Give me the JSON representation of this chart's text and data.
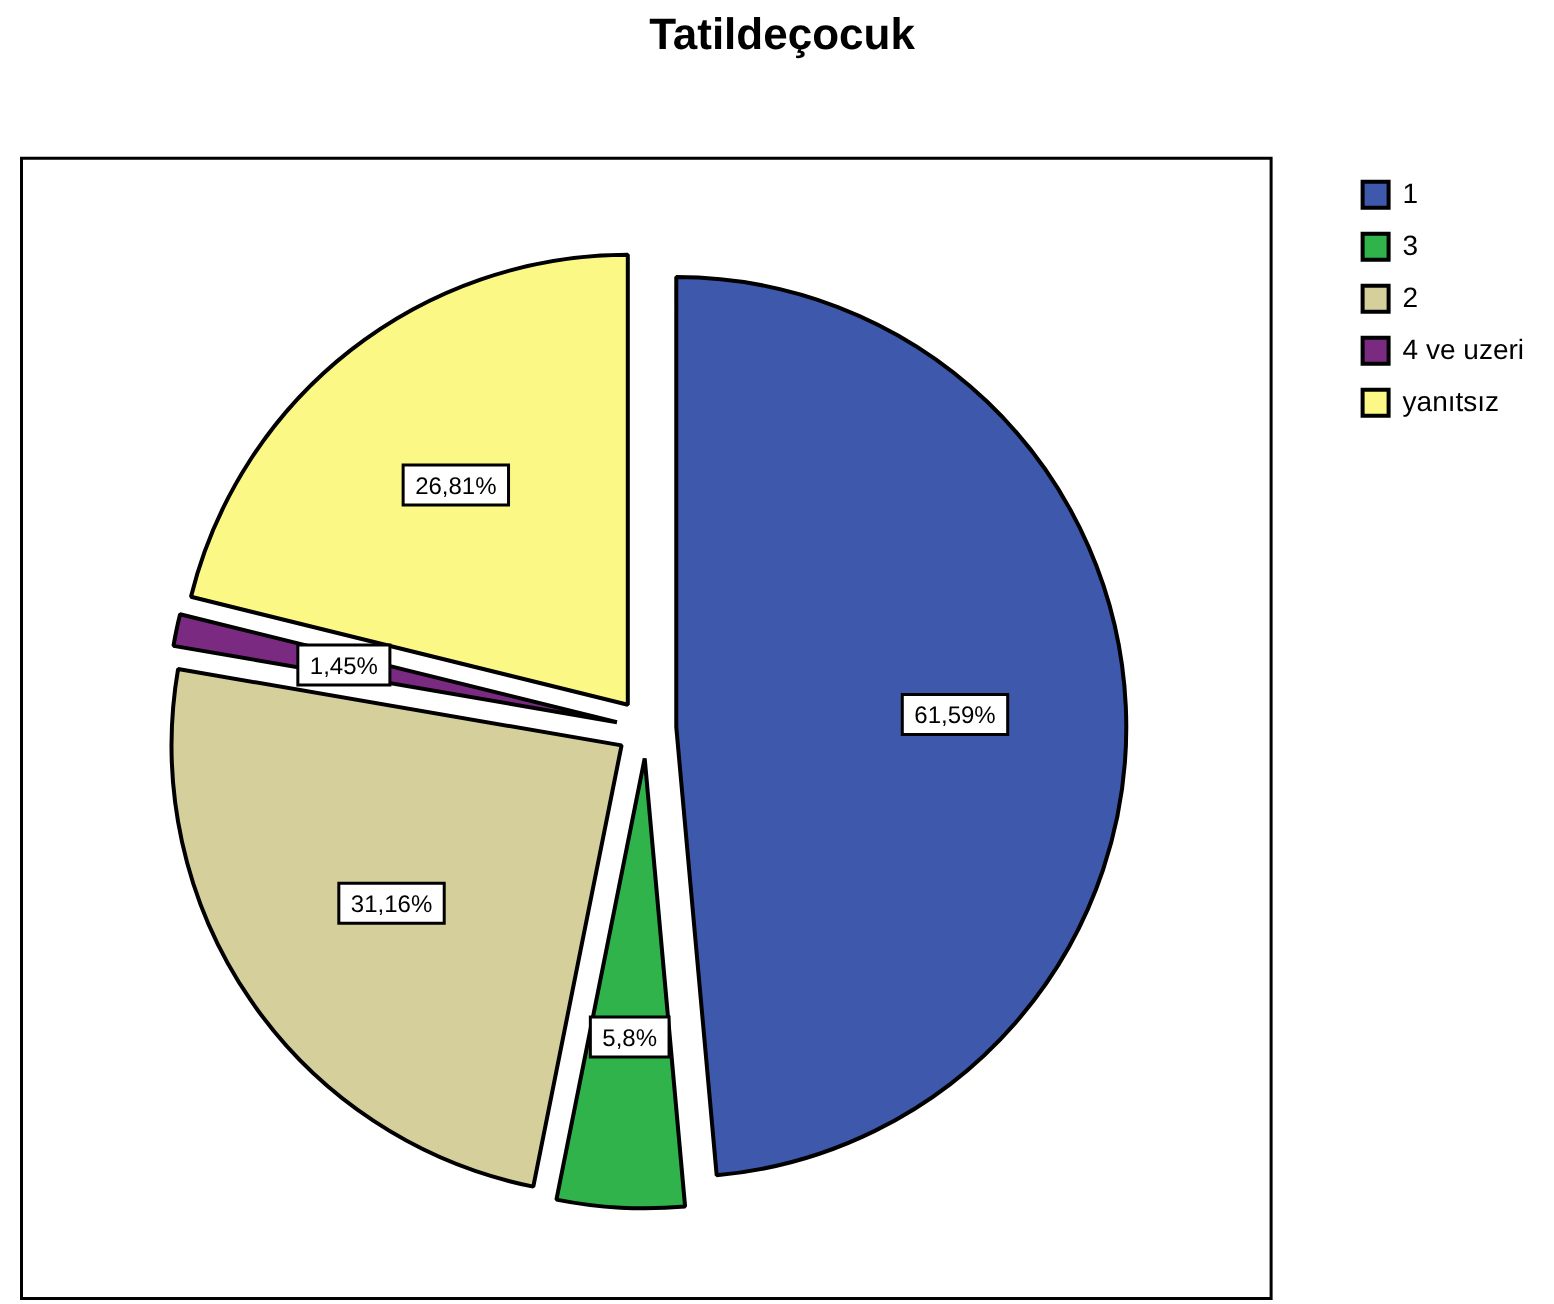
{
  "chart_data": {
    "type": "pie",
    "title": "Tatildeçocuk",
    "categories": [
      "1",
      "3",
      "2",
      "4 ve uzeri",
      "yanıtsız"
    ],
    "values": [
      61.59,
      5.8,
      31.16,
      1.45,
      26.81
    ],
    "colors": [
      "#3e58ab",
      "#2fb34a",
      "#d5cf9b",
      "#7b2a82",
      "#fbf886"
    ],
    "value_labels": [
      "61,59%",
      "5,8%",
      "31,16%",
      "1,45%",
      "26,81%"
    ],
    "legend": "top right"
  }
}
